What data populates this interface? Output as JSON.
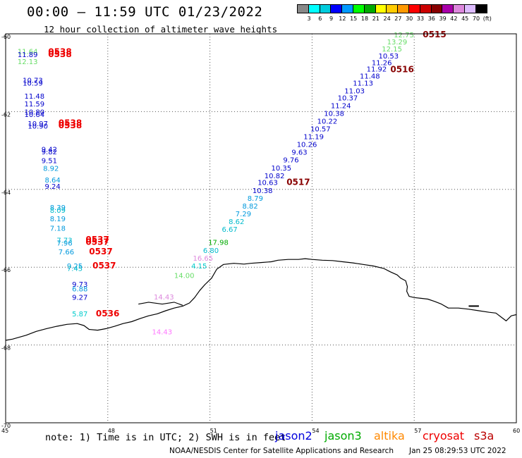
{
  "header": {
    "title": "00:00 – 11:59 UTC 01/23/2022",
    "subtitle": "12 hour collection of altimeter wave heights"
  },
  "colorbar": {
    "colors": [
      "#888888",
      "#00ffff",
      "#00ccdd",
      "#0000ff",
      "#0099ff",
      "#00ff00",
      "#00aa00",
      "#ffff00",
      "#ffcc00",
      "#ff9900",
      "#ff0000",
      "#cc0000",
      "#880000",
      "#aa00aa",
      "#dd88dd",
      "#ddbbff",
      "#000000"
    ],
    "labels": [
      "3",
      "6",
      "9",
      "12",
      "15",
      "18",
      "21",
      "24",
      "27",
      "30",
      "33",
      "36",
      "39",
      "42",
      "45",
      "70",
      "(ft)"
    ]
  },
  "axes": {
    "x_ticks": [
      "45",
      "48",
      "51",
      "54",
      "57",
      "60"
    ],
    "y_ticks": [
      "-60",
      "-62",
      "-64",
      "-66",
      "-68",
      "-70"
    ]
  },
  "observations": [
    {
      "lat": -60.09,
      "lon": 56.4,
      "text": "12.75",
      "color": "#66dd66"
    },
    {
      "lat": -60.09,
      "lon": 57.25,
      "text": "0515",
      "color": "#880000"
    },
    {
      "lat": -60.27,
      "lon": 56.2,
      "text": "13.29",
      "color": "#66dd66"
    },
    {
      "lat": -60.45,
      "lon": 56.05,
      "text": "12.15",
      "color": "#66dd66"
    },
    {
      "lat": -60.63,
      "lon": 55.95,
      "text": "10.53",
      "color": "#0000cc"
    },
    {
      "lat": -60.81,
      "lon": 55.75,
      "text": "11.26",
      "color": "#0000cc"
    },
    {
      "lat": -60.97,
      "lon": 55.6,
      "text": "11.92",
      "color": "#0000cc"
    },
    {
      "lat": -60.99,
      "lon": 56.3,
      "text": "0516",
      "color": "#880000"
    },
    {
      "lat": -61.15,
      "lon": 55.4,
      "text": "11.48",
      "color": "#0000cc"
    },
    {
      "lat": -61.33,
      "lon": 55.2,
      "text": "11.13",
      "color": "#0000cc"
    },
    {
      "lat": -61.53,
      "lon": 54.95,
      "text": "11.03",
      "color": "#0000cc"
    },
    {
      "lat": -61.71,
      "lon": 54.75,
      "text": "10.37",
      "color": "#0000cc"
    },
    {
      "lat": -61.91,
      "lon": 54.55,
      "text": "11.24",
      "color": "#0000cc"
    },
    {
      "lat": -62.11,
      "lon": 54.35,
      "text": "10.38",
      "color": "#0000cc"
    },
    {
      "lat": -62.31,
      "lon": 54.15,
      "text": "10.22",
      "color": "#0000cc"
    },
    {
      "lat": -62.51,
      "lon": 53.95,
      "text": "10.57",
      "color": "#0000cc"
    },
    {
      "lat": -62.71,
      "lon": 53.75,
      "text": "11.19",
      "color": "#0000cc"
    },
    {
      "lat": -62.91,
      "lon": 53.55,
      "text": "10.26",
      "color": "#0000cc"
    },
    {
      "lat": -63.11,
      "lon": 53.4,
      "text": "9.63",
      "color": "#0000cc"
    },
    {
      "lat": -63.31,
      "lon": 53.15,
      "text": "9.76",
      "color": "#0000cc"
    },
    {
      "lat": -63.51,
      "lon": 52.8,
      "text": "10.35",
      "color": "#0000cc"
    },
    {
      "lat": -63.71,
      "lon": 52.6,
      "text": "10.82",
      "color": "#0000cc"
    },
    {
      "lat": -63.89,
      "lon": 52.4,
      "text": "10.63",
      "color": "#0000cc"
    },
    {
      "lat": -63.89,
      "lon": 53.25,
      "text": "0517",
      "color": "#880000"
    },
    {
      "lat": -64.09,
      "lon": 52.25,
      "text": "10.38",
      "color": "#0000cc"
    },
    {
      "lat": -64.29,
      "lon": 52.1,
      "text": "8.79",
      "color": "#0099dd"
    },
    {
      "lat": -64.49,
      "lon": 51.95,
      "text": "8.82",
      "color": "#0099dd"
    },
    {
      "lat": -64.69,
      "lon": 51.75,
      "text": "7.29",
      "color": "#0099dd"
    },
    {
      "lat": -64.89,
      "lon": 51.55,
      "text": "8.62",
      "color": "#00bbcc"
    },
    {
      "lat": -65.09,
      "lon": 51.35,
      "text": "6.67",
      "color": "#00bbcc"
    },
    {
      "lat": -65.43,
      "lon": 50.95,
      "text": "17.98",
      "color": "#00aa00"
    },
    {
      "lat": -65.63,
      "lon": 50.8,
      "text": "6.80",
      "color": "#00bbcc"
    },
    {
      "lat": -65.83,
      "lon": 50.5,
      "text": "16.65",
      "color": "#dd88dd"
    },
    {
      "lat": -66.03,
      "lon": 50.45,
      "text": "4.15",
      "color": "#00cccc"
    },
    {
      "lat": -66.28,
      "lon": 49.95,
      "text": "14.00",
      "color": "#66dd66"
    },
    {
      "lat": -66.83,
      "lon": 49.35,
      "text": "14.43",
      "color": "#dd88dd"
    },
    {
      "lat": -60.52,
      "lon": 45.35,
      "text": "11.64",
      "color": "#66dd66"
    },
    {
      "lat": -60.6,
      "lon": 45.35,
      "text": "11.89",
      "color": "#0000cc"
    },
    {
      "lat": -60.78,
      "lon": 45.35,
      "text": "12.13",
      "color": "#66dd66"
    },
    {
      "lat": -60.53,
      "lon": 46.25,
      "text": "0538",
      "color": "#ee0000"
    },
    {
      "lat": -60.6,
      "lon": 46.25,
      "text": "0538",
      "color": "#ee0000"
    },
    {
      "lat": -61.26,
      "lon": 45.5,
      "text": "10.73",
      "color": "#0000cc"
    },
    {
      "lat": -61.33,
      "lon": 45.5,
      "text": "10.59",
      "color": "#0000cc"
    },
    {
      "lat": -61.67,
      "lon": 45.55,
      "text": "11.48",
      "color": "#0000cc"
    },
    {
      "lat": -61.87,
      "lon": 45.55,
      "text": "11.59",
      "color": "#0000cc"
    },
    {
      "lat": -62.07,
      "lon": 45.55,
      "text": "10.80",
      "color": "#0000cc"
    },
    {
      "lat": -62.14,
      "lon": 45.55,
      "text": "10.64",
      "color": "#0000cc"
    },
    {
      "lat": -62.37,
      "lon": 45.65,
      "text": "10.97",
      "color": "#0000cc"
    },
    {
      "lat": -62.44,
      "lon": 45.65,
      "text": "10.90",
      "color": "#0000cc"
    },
    {
      "lat": -62.36,
      "lon": 46.55,
      "text": "0538",
      "color": "#ee0000"
    },
    {
      "lat": -62.43,
      "lon": 46.55,
      "text": "0538",
      "color": "#ee0000"
    },
    {
      "lat": -63.03,
      "lon": 46.05,
      "text": "9.42",
      "color": "#0000cc"
    },
    {
      "lat": -63.1,
      "lon": 46.05,
      "text": "9.82",
      "color": "#0000cc"
    },
    {
      "lat": -63.32,
      "lon": 46.05,
      "text": "9.51",
      "color": "#0000cc"
    },
    {
      "lat": -63.52,
      "lon": 46.1,
      "text": "8.92",
      "color": "#0099dd"
    },
    {
      "lat": -63.82,
      "lon": 46.15,
      "text": "8.64",
      "color": "#0099dd"
    },
    {
      "lat": -63.99,
      "lon": 46.15,
      "text": "9.24",
      "color": "#0000cc"
    },
    {
      "lat": -64.53,
      "lon": 46.3,
      "text": "8.39",
      "color": "#0099dd"
    },
    {
      "lat": -64.6,
      "lon": 46.3,
      "text": "8.09",
      "color": "#00bbcc"
    },
    {
      "lat": -64.82,
      "lon": 46.3,
      "text": "8.19",
      "color": "#0099dd"
    },
    {
      "lat": -65.06,
      "lon": 46.3,
      "text": "7.18",
      "color": "#0099dd"
    },
    {
      "lat": -65.37,
      "lon": 46.5,
      "text": "7.73",
      "color": "#00bbcc"
    },
    {
      "lat": -65.44,
      "lon": 46.5,
      "text": "7.96",
      "color": "#0099dd"
    },
    {
      "lat": -65.36,
      "lon": 47.35,
      "text": "0537",
      "color": "#ee0000"
    },
    {
      "lat": -65.43,
      "lon": 47.35,
      "text": "0537",
      "color": "#ee0000"
    },
    {
      "lat": -65.67,
      "lon": 46.55,
      "text": "7.66",
      "color": "#0099dd"
    },
    {
      "lat": -65.67,
      "lon": 47.45,
      "text": "0537",
      "color": "#ee0000"
    },
    {
      "lat": -66.03,
      "lon": 46.8,
      "text": "9.25",
      "color": "#0099dd"
    },
    {
      "lat": -66.1,
      "lon": 46.8,
      "text": "7.45",
      "color": "#00bbcc"
    },
    {
      "lat": -66.03,
      "lon": 47.55,
      "text": "0537",
      "color": "#ee0000"
    },
    {
      "lat": -66.5,
      "lon": 46.95,
      "text": "9.73",
      "color": "#0000cc"
    },
    {
      "lat": -66.62,
      "lon": 46.95,
      "text": "6.88",
      "color": "#0099dd"
    },
    {
      "lat": -66.84,
      "lon": 46.95,
      "text": "9.27",
      "color": "#0000cc"
    },
    {
      "lat": -67.26,
      "lon": 46.95,
      "text": "5.87",
      "color": "#00cccc"
    },
    {
      "lat": -67.26,
      "lon": 47.65,
      "text": "0536",
      "color": "#ee0000"
    },
    {
      "lat": -67.73,
      "lon": 49.3,
      "text": "14.43",
      "color": "#ff77ff"
    }
  ],
  "footer": {
    "note": "note:  1) Time is in UTC;  2) SWH is in feet",
    "satellites": [
      {
        "name": "jason2",
        "color": "#0000dd"
      },
      {
        "name": "jason3",
        "color": "#00aa00"
      },
      {
        "name": "altika",
        "color": "#ff8800"
      },
      {
        "name": "cryosat",
        "color": "#ee0000"
      },
      {
        "name": "s3a",
        "color": "#bb0000"
      }
    ],
    "credit": "NOAA/NESDIS Center for Satellite Applications and Research",
    "timestamp": "Jan 25 08:29:53 UTC 2022"
  }
}
